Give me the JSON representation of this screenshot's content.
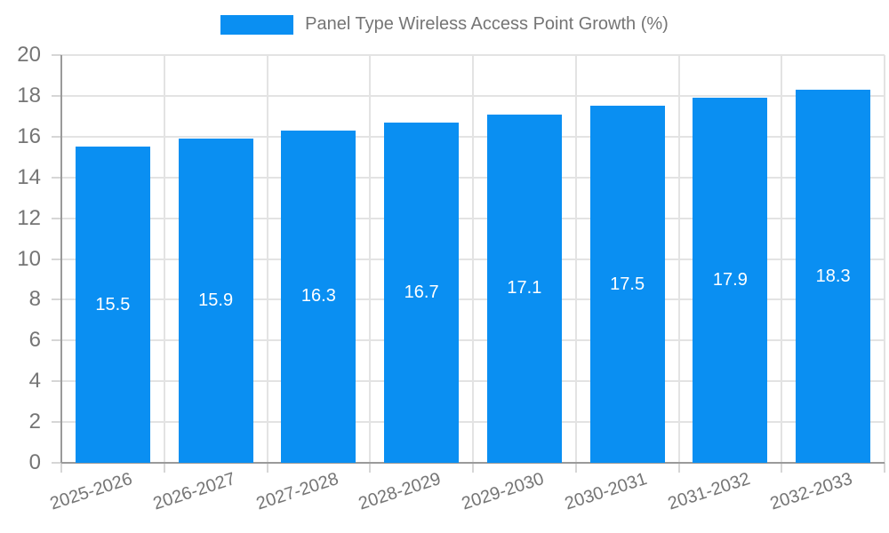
{
  "legend": {
    "label": "Panel Type Wireless Access Point Growth (%)"
  },
  "chart_data": {
    "type": "bar",
    "title": "Panel Type Wireless Access Point Growth (%)",
    "categories": [
      "2025-2026",
      "2026-2027",
      "2027-2028",
      "2028-2029",
      "2029-2030",
      "2030-2031",
      "2031-2032",
      "2032-2033"
    ],
    "values": [
      15.5,
      15.9,
      16.3,
      16.7,
      17.1,
      17.5,
      17.9,
      18.3
    ],
    "xlabel": "",
    "ylabel": "",
    "ylim": [
      0,
      20
    ],
    "ytick_step": 2,
    "yticks": [
      0,
      2,
      4,
      6,
      8,
      10,
      12,
      14,
      16,
      18,
      20
    ],
    "grid": true,
    "legend_position": "top-center",
    "value_labels_shown": true,
    "x_tick_rotation_deg": -18,
    "colors": {
      "bar": "#0a8ff2",
      "grid": "#e3e3e3",
      "axis": "#9a9a9a",
      "tick_label": "#757575",
      "value_label": "#ffffff",
      "background": "#ffffff"
    }
  }
}
